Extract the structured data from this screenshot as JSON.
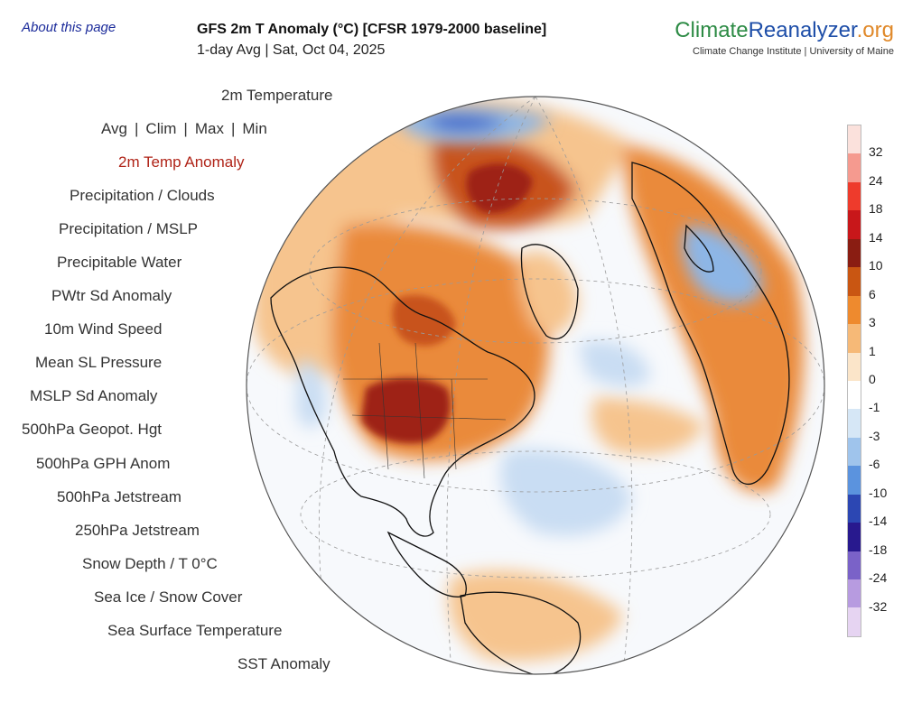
{
  "header": {
    "about_link": "About this page",
    "title": "GFS 2m T Anomaly (°C) [CFSR 1979-2000 baseline]",
    "subtitle": "1-day Avg | Sat, Oct 04, 2025"
  },
  "brand": {
    "part1": "Climate",
    "part2": "Reanalyzer",
    "part3": ".org",
    "subtitle": "Climate Change Institute | University of Maine",
    "colors": {
      "climate": "#2d8b45",
      "reanalyzer": "#1e4ea8",
      "org": "#e0892a"
    }
  },
  "menu": {
    "top": "2m Temperature",
    "stat_options": [
      "Avg",
      "Clim",
      "Max",
      "Min"
    ],
    "items": [
      {
        "label": "2m Temp Anomaly",
        "active": true
      },
      {
        "label": "Precipitation / Clouds",
        "active": false
      },
      {
        "label": "Precipitation / MSLP",
        "active": false
      },
      {
        "label": "Precipitable Water",
        "active": false
      },
      {
        "label": "PWtr Sd Anomaly",
        "active": false
      },
      {
        "label": "10m Wind Speed",
        "active": false
      },
      {
        "label": "Mean SL Pressure",
        "active": false
      },
      {
        "label": "MSLP Sd Anomaly",
        "active": false
      },
      {
        "label": "500hPa Geopot. Hgt",
        "active": false
      },
      {
        "label": "500hPa GPH Anom",
        "active": false
      },
      {
        "label": "500hPa Jetstream",
        "active": false
      },
      {
        "label": "250hPa Jetstream",
        "active": false
      },
      {
        "label": "Snow Depth / T 0°C",
        "active": false
      },
      {
        "label": "Sea Ice / Snow Cover",
        "active": false
      },
      {
        "label": "Sea Surface Temperature",
        "active": false
      },
      {
        "label": "SST Anomaly",
        "active": false
      }
    ],
    "active_color": "#b02418"
  },
  "legend": {
    "labels": [
      "32",
      "24",
      "18",
      "14",
      "10",
      "6",
      "3",
      "1",
      "0",
      "-1",
      "-3",
      "-6",
      "-10",
      "-14",
      "-18",
      "-24",
      "-32"
    ],
    "colors": [
      "#fbe1dc",
      "#f59a8f",
      "#ee3b2c",
      "#c8171a",
      "#8a1d12",
      "#c95612",
      "#ee8a2e",
      "#f6b977",
      "#fbe5c9",
      "#ffffff",
      "#d6e7f6",
      "#9fc4ec",
      "#5b93de",
      "#2c47b3",
      "#28198e",
      "#7a62c8",
      "#b79be0",
      "#e6d4f2"
    ]
  },
  "map": {
    "projection": "orthographic",
    "colors": {
      "ocean_neutral": "#f7f9fc",
      "warm_light": "#f6c48e",
      "warm_mid": "#ea8a3a",
      "warm_strong": "#c8531a",
      "hot": "#9e2012",
      "cool_light": "#c9ddf3",
      "cool_mid": "#8db6e6",
      "cold": "#3c63c8"
    }
  }
}
